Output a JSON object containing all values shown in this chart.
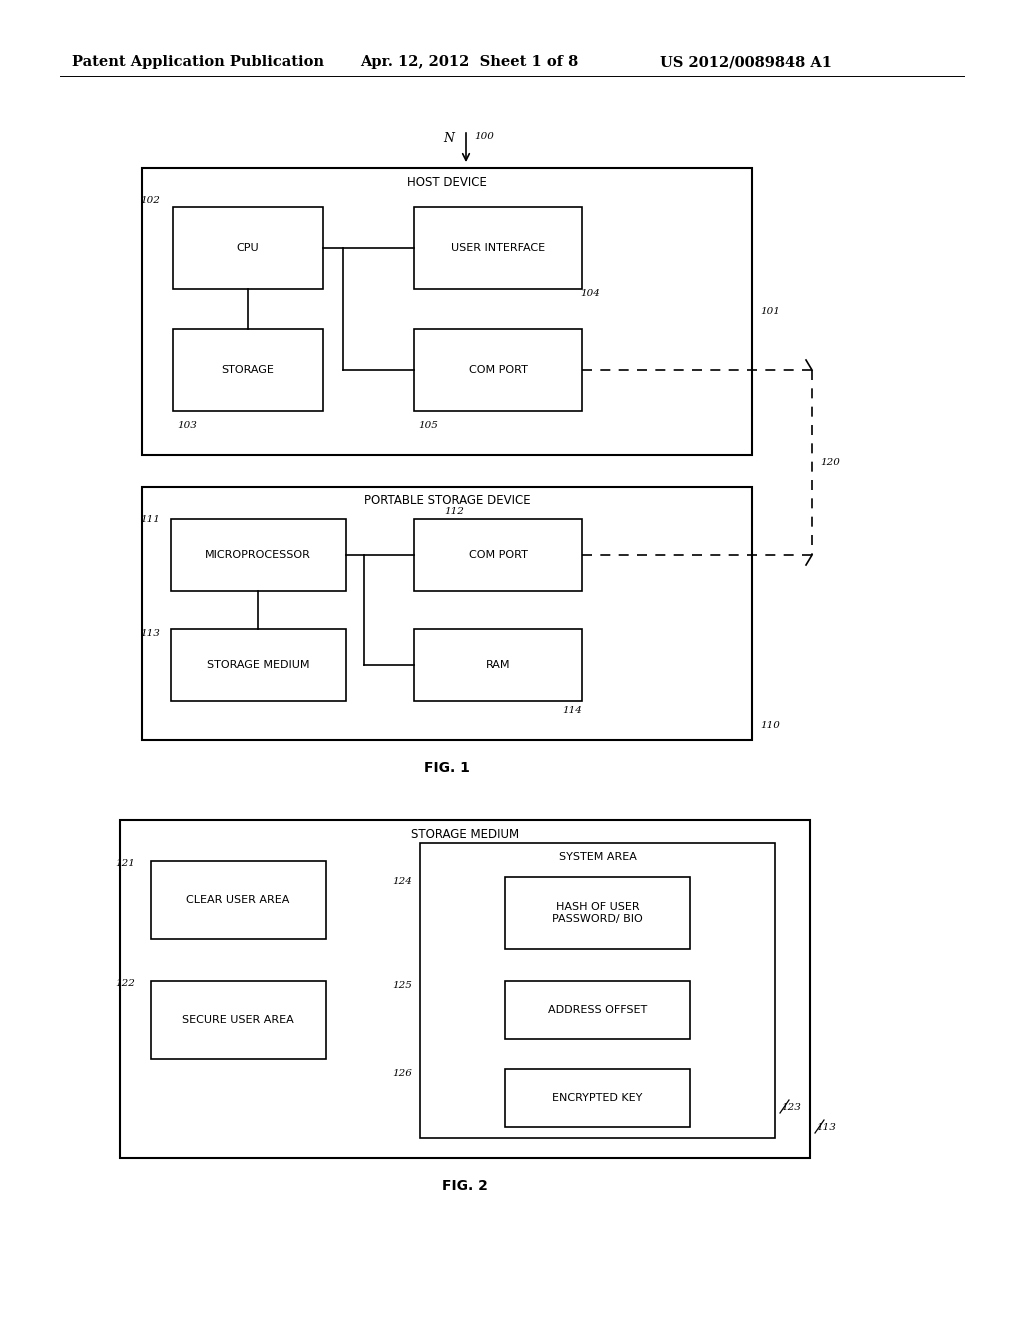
{
  "bg_color": "#ffffff",
  "header_left": "Patent Application Publication",
  "header_center": "Apr. 12, 2012  Sheet 1 of 8",
  "header_right": "US 2012/0089848 A1",
  "fig1_label": "FIG. 1",
  "fig2_label": "FIG. 2",
  "fig1_title": "HOST DEVICE",
  "fig1_subtitle": "PORTABLE STORAGE DEVICE",
  "fig2_title": "STORAGE MEDIUM",
  "fig2_subtitle": "SYSTEM AREA",
  "boxes": {
    "cpu": "CPU",
    "user_interface": "USER INTERFACE",
    "storage": "STORAGE",
    "com_port_host": "COM PORT",
    "microprocessor": "MICROPROCESSOR",
    "com_port_portable": "COM PORT",
    "storage_medium_portable": "STORAGE MEDIUM",
    "ram": "RAM",
    "clear_user_area": "CLEAR USER AREA",
    "secure_user_area": "SECURE USER AREA",
    "hash": "HASH OF USER\nPASSWORD/ BIO",
    "address_offset": "ADDRESS OFFSET",
    "encrypted_key": "ENCRYPTED KEY"
  },
  "line_color": "#000000",
  "text_color": "#000000",
  "font_size_header": 10.5,
  "font_size_box": 8.0,
  "font_size_label": 7.5,
  "font_size_title": 8.5,
  "font_size_fig": 10
}
